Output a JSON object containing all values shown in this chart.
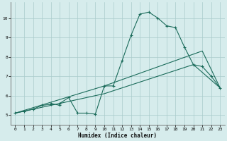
{
  "xlabel": "Humidex (Indice chaleur)",
  "bg_color": "#d6ecec",
  "grid_color": "#aacccc",
  "line_color": "#1a6b5a",
  "xlim": [
    -0.5,
    23.5
  ],
  "ylim": [
    4.5,
    10.8
  ],
  "xticks": [
    0,
    1,
    2,
    3,
    4,
    5,
    6,
    7,
    8,
    9,
    10,
    11,
    12,
    13,
    14,
    15,
    16,
    17,
    18,
    19,
    20,
    21,
    22,
    23
  ],
  "yticks": [
    5,
    6,
    7,
    8,
    9,
    10
  ],
  "line_wiggly": {
    "x": [
      0,
      1,
      2,
      3,
      4,
      4,
      5,
      5,
      6,
      7,
      8,
      9,
      10,
      11,
      12,
      13,
      14,
      15,
      16,
      17,
      18,
      19,
      20,
      21,
      22,
      23
    ],
    "y": [
      5.1,
      5.2,
      5.3,
      5.5,
      5.55,
      5.6,
      5.5,
      5.6,
      5.9,
      5.1,
      5.1,
      5.05,
      6.5,
      6.5,
      7.8,
      9.1,
      10.2,
      10.3,
      10.0,
      9.6,
      9.5,
      8.5,
      7.6,
      7.5,
      7.0,
      6.4
    ]
  },
  "line_upper": {
    "x": [
      0,
      10,
      21,
      23
    ],
    "y": [
      5.1,
      6.5,
      8.3,
      6.4
    ]
  },
  "line_lower": {
    "x": [
      0,
      10,
      20,
      23
    ],
    "y": [
      5.1,
      6.1,
      7.6,
      6.4
    ]
  }
}
